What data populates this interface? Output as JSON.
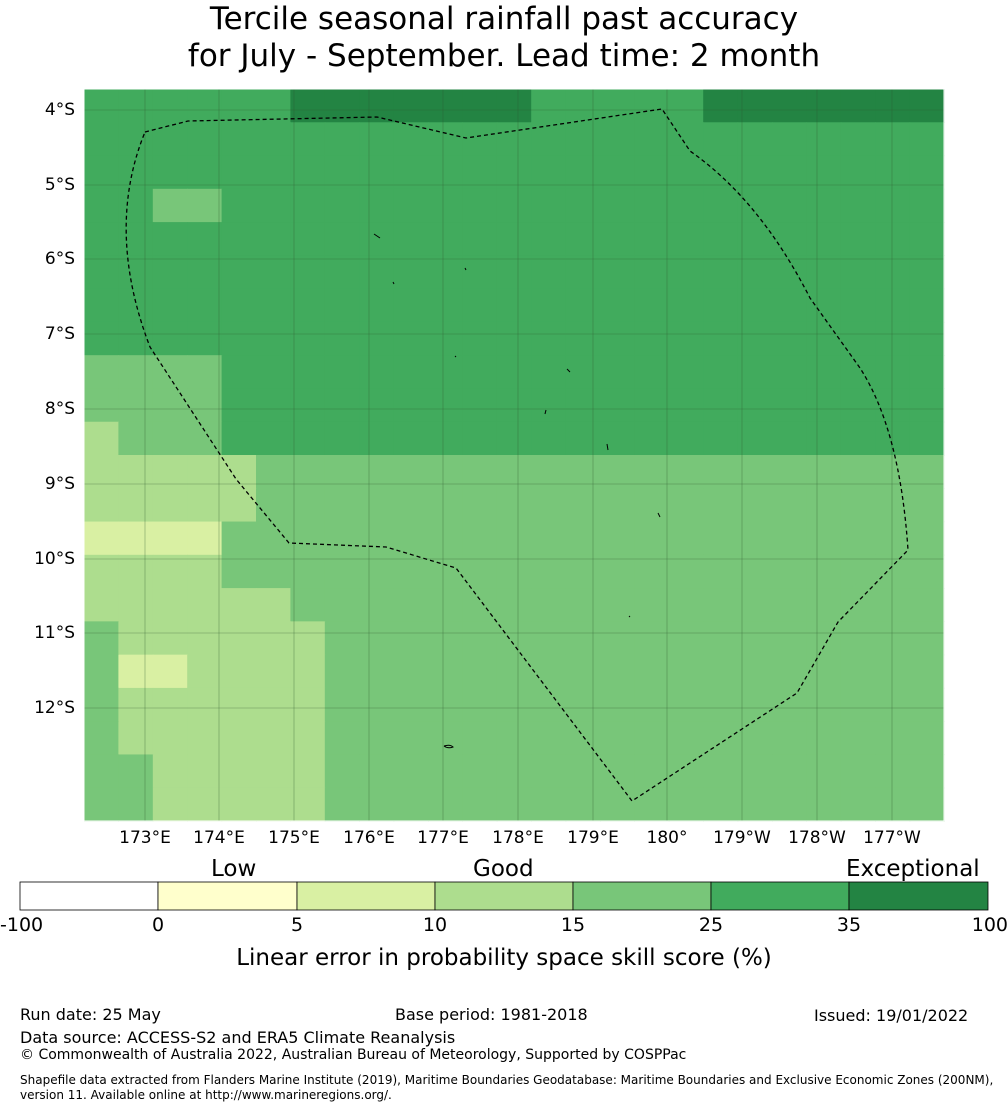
{
  "title": {
    "line1": "Tercile seasonal rainfall past accuracy",
    "line2": "for July - September. Lead time: 2 month"
  },
  "map": {
    "lat_labels": [
      "4°S",
      "5°S",
      "6°S",
      "7°S",
      "8°S",
      "9°S",
      "10°S",
      "11°S",
      "12°S"
    ],
    "lon_labels": [
      "173°E",
      "174°E",
      "175°E",
      "176°E",
      "177°E",
      "178°E",
      "179°E",
      "180°",
      "179°W",
      "178°W",
      "177°W"
    ],
    "grid_rows": [
      "5555556666666555556666666",
      "5555555555555555555555555",
      "5555555555555555555555555",
      "5544555555555555555555555",
      "5555555555555555555555555",
      "5555555555555555555555555",
      "5555555555555555555555555",
      "5555555555555555555555555",
      "4444555555555555555555555",
      "4444555555555555555555555",
      "3444555555555555555555555",
      "3333344444444444444444444",
      "3333344444444444444444444",
      "2222444444444444444444444",
      "3333444444444444444444444",
      "3333334444444444444444444",
      "4333333444444444444444444",
      "4223333444444444444444444",
      "4333333444444444444444444",
      "4333333444444444444444444",
      "4433333444444444444444444",
      "4433333444444444444444444"
    ],
    "colors": {
      "low1": "#ffffcc",
      "low2": "#d9f0a3",
      "good1": "#addd8e",
      "good2": "#78c679",
      "exc1": "#41ab5d",
      "exc2": "#238443"
    }
  },
  "colorbar": {
    "category_low": "Low",
    "category_good": "Good",
    "category_exceptional": "Exceptional",
    "ticks": [
      "-100",
      "0",
      "5",
      "10",
      "15",
      "25",
      "35",
      "100"
    ],
    "colors": [
      "#ffffff",
      "#ffffcc",
      "#d9f0a3",
      "#addd8e",
      "#78c679",
      "#41ab5d",
      "#238443"
    ],
    "label": "Linear error in probability space skill score (%)"
  },
  "footer": {
    "run_date": "Run date: 25 May",
    "base_period": "Base period: 1981-2018",
    "issued": "Issued: 19/01/2022",
    "data_source": "Data source: ACCESS-S2 and ERA5 Climate Reanalysis",
    "copyright": "© Commonwealth of Australia 2022, Australian Bureau of Meteorology, Supported by COSPPac",
    "shapefile_line1": "Shapefile data extracted from Flanders Marine Institute (2019), Maritime Boundaries Geodatabase: Maritime Boundaries and Exclusive Economic Zones (200NM),",
    "shapefile_line2": "version 11. Available online at http://www.marineregions.org/."
  }
}
